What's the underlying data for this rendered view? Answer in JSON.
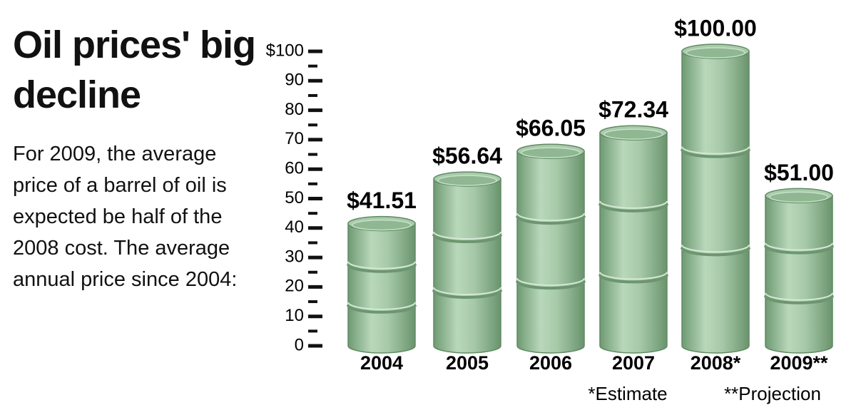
{
  "chart_data": {
    "type": "bar",
    "title": "Oil prices' big decline",
    "subtitle": "For 2009, the average price of a barrel of oil is expected be half of the 2008 cost. The average annual price since 2004:",
    "categories": [
      "2004",
      "2005",
      "2006",
      "2007",
      "2008*",
      "2009**"
    ],
    "values": [
      41.51,
      56.64,
      66.05,
      72.34,
      100,
      51
    ],
    "value_labels": [
      "$41.51",
      "$56.64",
      "$66.05",
      "$72.34",
      "$100.00",
      "$51.00"
    ],
    "color": "#9cc29f",
    "ylim": [
      0,
      100
    ],
    "yticks": [
      0,
      10,
      20,
      30,
      40,
      50,
      60,
      70,
      80,
      90,
      {
        "value": 100,
        "label": "$100"
      }
    ],
    "minor_yticks": [
      5,
      15,
      25,
      35,
      45,
      55,
      65,
      75,
      85,
      95
    ],
    "notes": [
      "*Estimate",
      "**Projection"
    ]
  }
}
